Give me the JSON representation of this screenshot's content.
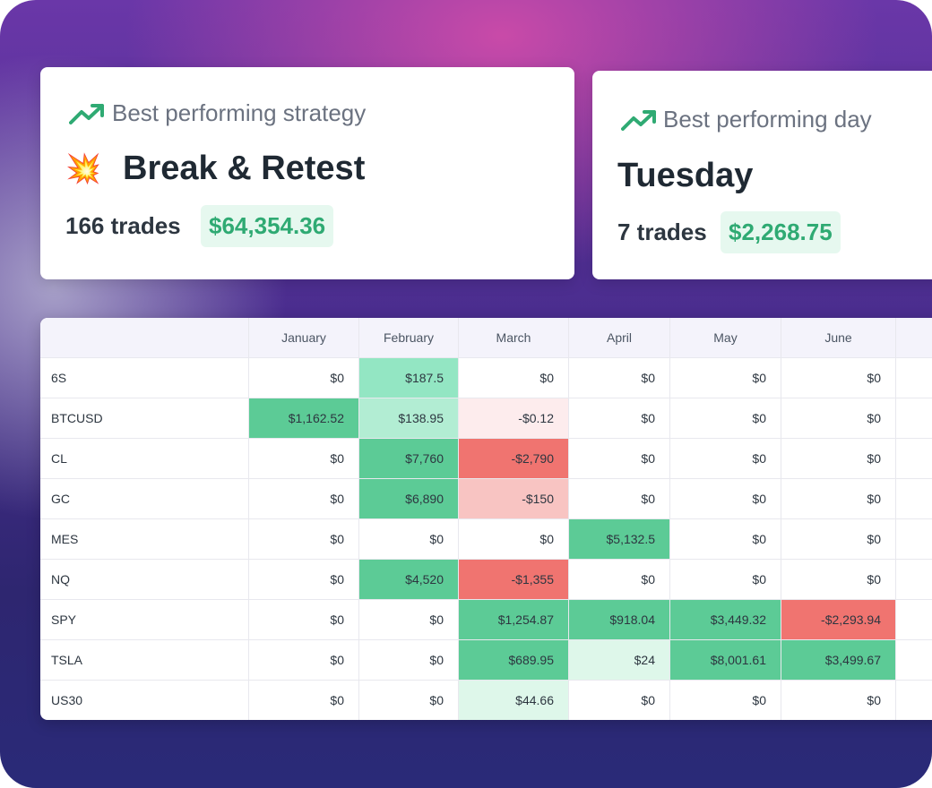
{
  "cards": [
    {
      "label": "Best performing strategy",
      "icon": "💥",
      "name": "Break & Retest",
      "trades": "166 trades",
      "amount": "$64,354.36"
    },
    {
      "label": "Best performing day",
      "name": "Tuesday",
      "trades": "7 trades",
      "amount": "$2,268.75"
    }
  ],
  "table": {
    "header": [
      "January",
      "February",
      "March",
      "April",
      "May",
      "June"
    ],
    "rows": [
      {
        "symbol": "6S",
        "cells": [
          "$0",
          "$187.5",
          "$0",
          "$0",
          "$0",
          "$0"
        ],
        "colors": [
          "#ffffff",
          "#93e6c3",
          "#ffffff",
          "#ffffff",
          "#ffffff",
          "#ffffff"
        ]
      },
      {
        "symbol": "BTCUSD",
        "cells": [
          "$1,162.52",
          "$138.95",
          "-$0.12",
          "$0",
          "$0",
          "$0"
        ],
        "colors": [
          "#5ccb96",
          "#b2edd3",
          "#fdeced",
          "#ffffff",
          "#ffffff",
          "#ffffff"
        ]
      },
      {
        "symbol": "CL",
        "cells": [
          "$0",
          "$7,760",
          "-$2,790",
          "$0",
          "$0",
          "$0"
        ],
        "colors": [
          "#ffffff",
          "#5ccb96",
          "#f07470",
          "#ffffff",
          "#ffffff",
          "#ffffff"
        ]
      },
      {
        "symbol": "GC",
        "cells": [
          "$0",
          "$6,890",
          "-$150",
          "$0",
          "$0",
          "$0"
        ],
        "colors": [
          "#ffffff",
          "#5ccb96",
          "#f8c4c2",
          "#ffffff",
          "#ffffff",
          "#ffffff"
        ]
      },
      {
        "symbol": "MES",
        "cells": [
          "$0",
          "$0",
          "$0",
          "$5,132.5",
          "$0",
          "$0"
        ],
        "colors": [
          "#ffffff",
          "#ffffff",
          "#ffffff",
          "#5ccb96",
          "#ffffff",
          "#ffffff"
        ]
      },
      {
        "symbol": "NQ",
        "cells": [
          "$0",
          "$4,520",
          "-$1,355",
          "$0",
          "$0",
          "$0"
        ],
        "colors": [
          "#ffffff",
          "#5ccb96",
          "#f07470",
          "#ffffff",
          "#ffffff",
          "#ffffff"
        ]
      },
      {
        "symbol": "SPY",
        "cells": [
          "$0",
          "$0",
          "$1,254.87",
          "$918.04",
          "$3,449.32",
          "-$2,293.94"
        ],
        "colors": [
          "#ffffff",
          "#ffffff",
          "#5ccb96",
          "#5ccb96",
          "#5ccb96",
          "#f07470"
        ]
      },
      {
        "symbol": "TSLA",
        "cells": [
          "$0",
          "$0",
          "$689.95",
          "$24",
          "$8,001.61",
          "$3,499.67"
        ],
        "colors": [
          "#ffffff",
          "#ffffff",
          "#5ccb96",
          "#def7ea",
          "#5ccb96",
          "#5ccb96"
        ]
      },
      {
        "symbol": "US30",
        "cells": [
          "$0",
          "$0",
          "$44.66",
          "$0",
          "$0",
          "$0"
        ],
        "colors": [
          "#ffffff",
          "#ffffff",
          "#def7ea",
          "#ffffff",
          "#ffffff",
          "#ffffff"
        ]
      }
    ]
  }
}
